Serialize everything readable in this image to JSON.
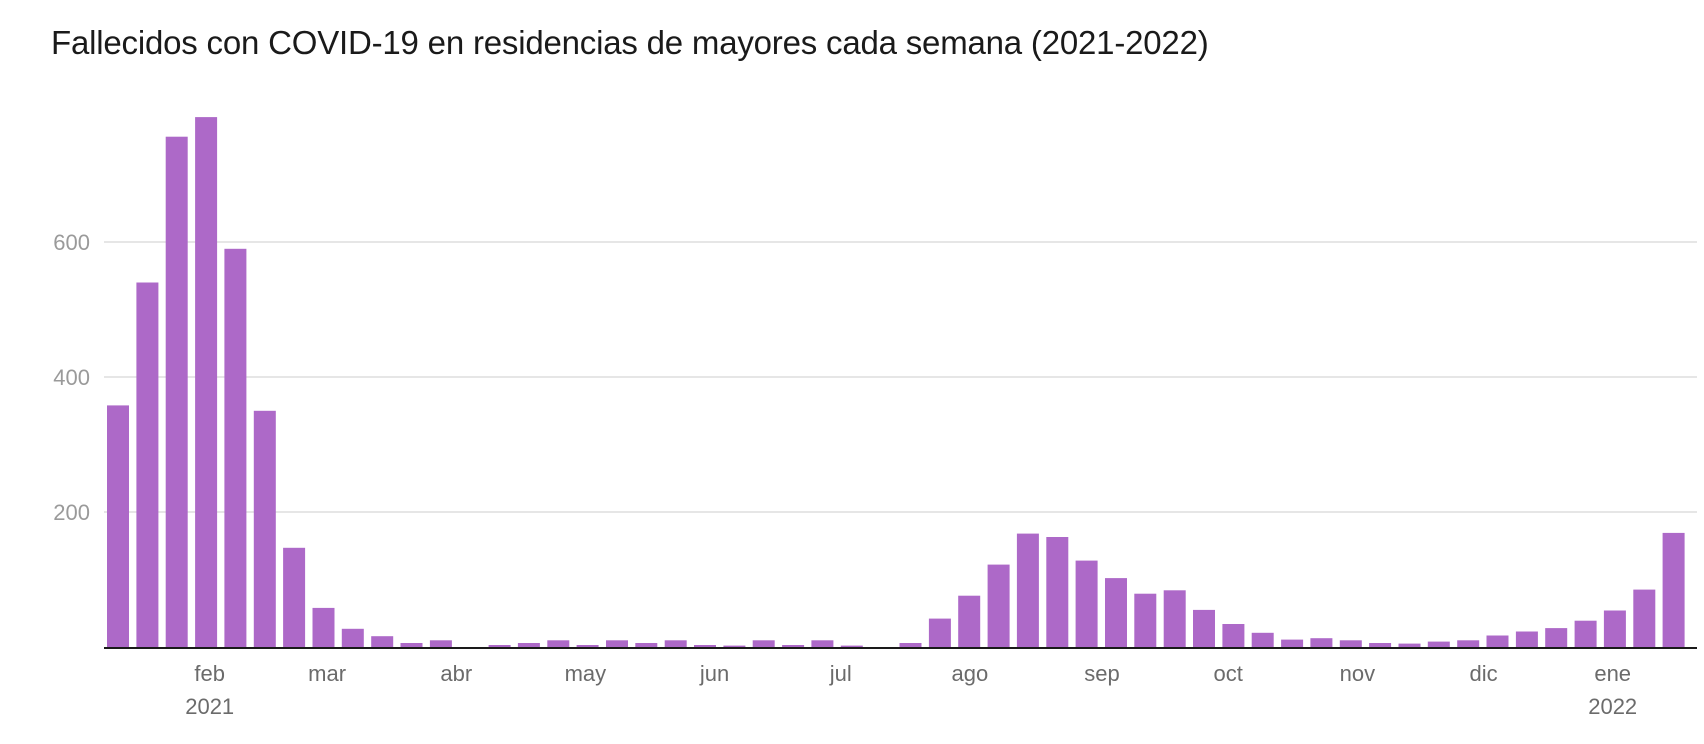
{
  "chart_data": {
    "type": "bar",
    "title": "Fallecidos con COVID-19 en residencias de mayores cada semana (2021-2022)",
    "xlabel": "",
    "ylabel": "",
    "ylim": [
      0,
      800
    ],
    "yticks": [
      200,
      400,
      600
    ],
    "grid": true,
    "legend": "none",
    "bar_color": "#ad69c8",
    "gridline_color": "#e6e6e6",
    "axis_color": "#1a1a1a",
    "x_month_labels": [
      {
        "label": "feb",
        "sublabel": "2021",
        "week_index": 3.5
      },
      {
        "label": "mar",
        "sublabel": "",
        "week_index": 7.5
      },
      {
        "label": "abr",
        "sublabel": "",
        "week_index": 11.9
      },
      {
        "label": "may",
        "sublabel": "",
        "week_index": 16.3
      },
      {
        "label": "jun",
        "sublabel": "",
        "week_index": 20.7
      },
      {
        "label": "jul",
        "sublabel": "",
        "week_index": 25.0
      },
      {
        "label": "ago",
        "sublabel": "",
        "week_index": 29.4
      },
      {
        "label": "sep",
        "sublabel": "",
        "week_index": 33.9
      },
      {
        "label": "oct",
        "sublabel": "",
        "week_index": 38.2
      },
      {
        "label": "nov",
        "sublabel": "",
        "week_index": 42.6
      },
      {
        "label": "dic",
        "sublabel": "",
        "week_index": 46.9
      },
      {
        "label": "ene",
        "sublabel": "2022",
        "week_index": 51.3
      }
    ],
    "values": [
      358,
      540,
      756,
      785,
      590,
      350,
      147,
      58,
      27,
      16,
      6,
      10,
      0,
      3,
      6,
      10,
      3,
      10,
      6,
      10,
      3,
      2,
      10,
      3,
      10,
      2,
      0,
      6,
      42,
      76,
      122,
      168,
      163,
      128,
      102,
      79,
      84,
      55,
      34,
      21,
      11,
      13,
      10,
      6,
      5,
      8,
      10,
      17,
      23,
      28,
      39,
      54,
      85,
      169
    ]
  }
}
